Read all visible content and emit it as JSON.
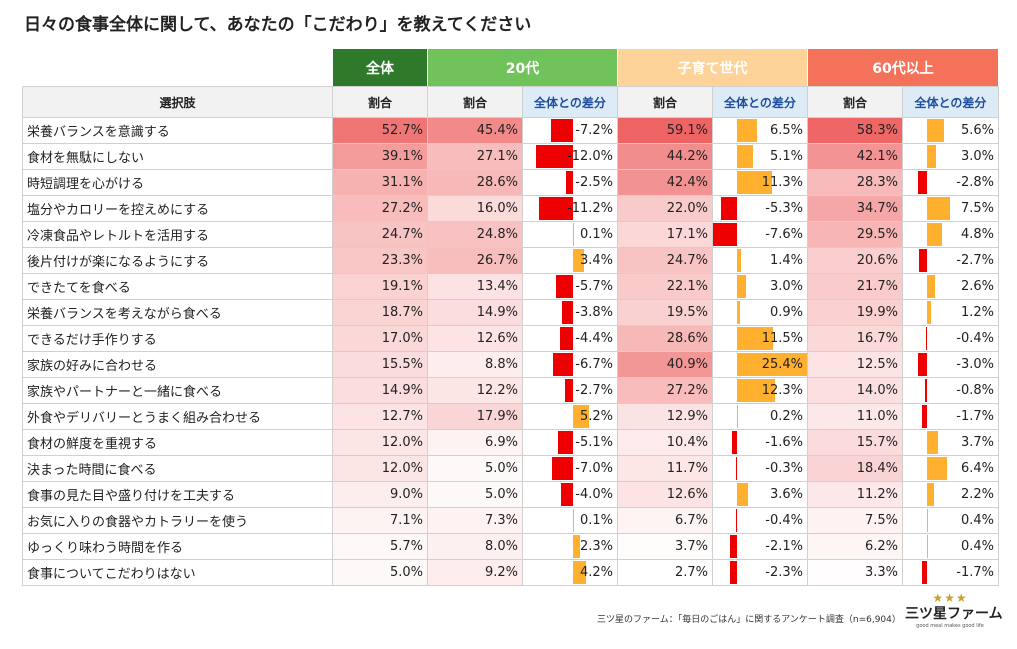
{
  "title": "日々の食事全体に関して、あなたの「こだわり」を教えてください",
  "source": "三ツ星のファーム：「毎日のごはん」に関するアンケート調査（n=6,904）",
  "logo": {
    "stars": "★★★",
    "name": "三ツ星ファーム",
    "tagline": "good meal makes good life"
  },
  "colors": {
    "overall": "#2e7a2a",
    "twenties": "#70c25a",
    "parenting": "#fdd39a",
    "sixties": "#f47259",
    "neg_bar": "#ee0000",
    "pos_bar": "#ffb02e",
    "heat_high": "#ee6464",
    "heat_low": "#ffffff"
  },
  "chart_data": {
    "type": "table",
    "title": "日々の食事全体に関して、あなたの「こだわり」を教えてください",
    "row_header": "選択肢",
    "share_label": "割合",
    "diff_label": "全体との差分",
    "groups": [
      "全体",
      "20代",
      "子育て世代",
      "60代以上"
    ],
    "rows": [
      {
        "label": "栄養バランスを意識する",
        "overall": 52.7,
        "g20": 45.4,
        "d20": -7.2,
        "gp": 59.1,
        "dp": 6.5,
        "g60": 58.3,
        "d60": 5.6
      },
      {
        "label": "食材を無駄にしない",
        "overall": 39.1,
        "g20": 27.1,
        "d20": -12.0,
        "gp": 44.2,
        "dp": 5.1,
        "g60": 42.1,
        "d60": 3.0
      },
      {
        "label": "時短調理を心がける",
        "overall": 31.1,
        "g20": 28.6,
        "d20": -2.5,
        "gp": 42.4,
        "dp": 11.3,
        "g60": 28.3,
        "d60": -2.8
      },
      {
        "label": "塩分やカロリーを控えめにする",
        "overall": 27.2,
        "g20": 16.0,
        "d20": -11.2,
        "gp": 22.0,
        "dp": -5.3,
        "g60": 34.7,
        "d60": 7.5
      },
      {
        "label": "冷凍食品やレトルトを活用する",
        "overall": 24.7,
        "g20": 24.8,
        "d20": 0.1,
        "gp": 17.1,
        "dp": -7.6,
        "g60": 29.5,
        "d60": 4.8
      },
      {
        "label": "後片付けが楽になるようにする",
        "overall": 23.3,
        "g20": 26.7,
        "d20": 3.4,
        "gp": 24.7,
        "dp": 1.4,
        "g60": 20.6,
        "d60": -2.7
      },
      {
        "label": "できたてを食べる",
        "overall": 19.1,
        "g20": 13.4,
        "d20": -5.7,
        "gp": 22.1,
        "dp": 3.0,
        "g60": 21.7,
        "d60": 2.6
      },
      {
        "label": "栄養バランスを考えながら食べる",
        "overall": 18.7,
        "g20": 14.9,
        "d20": -3.8,
        "gp": 19.5,
        "dp": 0.9,
        "g60": 19.9,
        "d60": 1.2
      },
      {
        "label": "できるだけ手作りする",
        "overall": 17.0,
        "g20": 12.6,
        "d20": -4.4,
        "gp": 28.6,
        "dp": 11.5,
        "g60": 16.7,
        "d60": -0.4
      },
      {
        "label": "家族の好みに合わせる",
        "overall": 15.5,
        "g20": 8.8,
        "d20": -6.7,
        "gp": 40.9,
        "dp": 25.4,
        "g60": 12.5,
        "d60": -3.0
      },
      {
        "label": "家族やパートナーと一緒に食べる",
        "overall": 14.9,
        "g20": 12.2,
        "d20": -2.7,
        "gp": 27.2,
        "dp": 12.3,
        "g60": 14.0,
        "d60": -0.8
      },
      {
        "label": "外食やデリバリーとうまく組み合わせる",
        "overall": 12.7,
        "g20": 17.9,
        "d20": 5.2,
        "gp": 12.9,
        "dp": 0.2,
        "g60": 11.0,
        "d60": -1.7
      },
      {
        "label": "食材の鮮度を重視する",
        "overall": 12.0,
        "g20": 6.9,
        "d20": -5.1,
        "gp": 10.4,
        "dp": -1.6,
        "g60": 15.7,
        "d60": 3.7
      },
      {
        "label": "決まった時間に食べる",
        "overall": 12.0,
        "g20": 5.0,
        "d20": -7.0,
        "gp": 11.7,
        "dp": -0.3,
        "g60": 18.4,
        "d60": 6.4
      },
      {
        "label": "食事の見た目や盛り付けを工夫する",
        "overall": 9.0,
        "g20": 5.0,
        "d20": -4.0,
        "gp": 12.6,
        "dp": 3.6,
        "g60": 11.2,
        "d60": 2.2
      },
      {
        "label": "お気に入りの食器やカトラリーを使う",
        "overall": 7.1,
        "g20": 7.3,
        "d20": 0.1,
        "gp": 6.7,
        "dp": -0.4,
        "g60": 7.5,
        "d60": 0.4
      },
      {
        "label": "ゆっくり味わう時間を作る",
        "overall": 5.7,
        "g20": 8.0,
        "d20": 2.3,
        "gp": 3.7,
        "dp": -2.1,
        "g60": 6.2,
        "d60": 0.4
      },
      {
        "label": "食事についてこだわりはない",
        "overall": 5.0,
        "g20": 9.2,
        "d20": 4.2,
        "gp": 2.7,
        "dp": -2.3,
        "g60": 3.3,
        "d60": -1.7
      }
    ]
  }
}
